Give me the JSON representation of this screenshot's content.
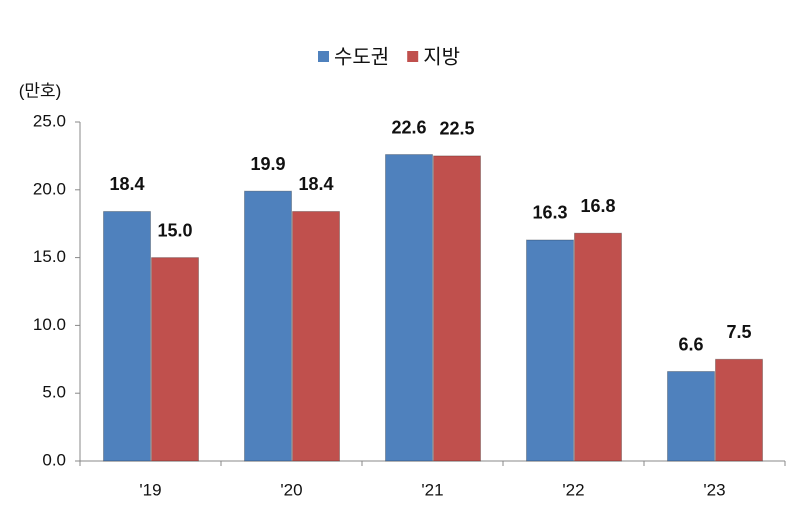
{
  "chart_data": {
    "type": "bar",
    "y_label": "(만호)",
    "categories": [
      "'19",
      "'20",
      "'21",
      "'22",
      "'23"
    ],
    "series": [
      {
        "name": "수도권",
        "color": "#4f81bd",
        "values": [
          18.4,
          19.9,
          22.6,
          16.3,
          6.6
        ],
        "value_labels": [
          "18.4",
          "19.9",
          "22.6",
          "16.3",
          "6.6"
        ]
      },
      {
        "name": "지방",
        "color": "#c0504d",
        "values": [
          15.0,
          18.4,
          22.5,
          16.8,
          7.5
        ],
        "value_labels": [
          "15.0",
          "18.4",
          "22.5",
          "16.8",
          "7.5"
        ]
      }
    ],
    "ylim": [
      0,
      25
    ],
    "yticks": [
      {
        "value": 0,
        "label": "0.0"
      },
      {
        "value": 5,
        "label": "5.0"
      },
      {
        "value": 10,
        "label": "10.0"
      },
      {
        "value": 15,
        "label": "15.0"
      },
      {
        "value": 20,
        "label": "20.0"
      },
      {
        "value": 25,
        "label": "25.0"
      }
    ],
    "grid": false,
    "legend": "top"
  }
}
